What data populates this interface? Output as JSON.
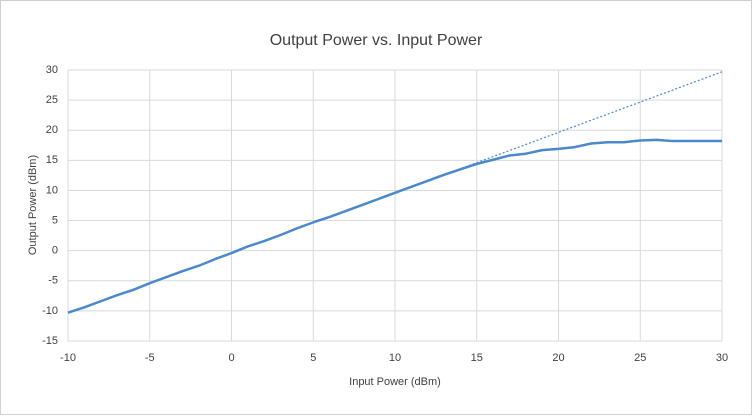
{
  "chart_data": {
    "type": "line",
    "title": "Output Power vs. Input Power",
    "x_label": "Input Power (dBm)",
    "y_label": "Output Power (dBm)",
    "x": [
      -10,
      -9,
      -8,
      -7,
      -6,
      -5,
      -4,
      -3,
      -2,
      -1,
      0,
      1,
      2,
      3,
      4,
      5,
      6,
      7,
      8,
      9,
      10,
      11,
      12,
      13,
      14,
      15,
      16,
      17,
      18,
      19,
      20,
      21,
      22,
      23,
      24,
      25,
      26,
      27,
      28,
      29,
      30
    ],
    "series": [
      {
        "color": "#4a89cc",
        "style": "solid",
        "values": [
          -10.3,
          -9.4,
          -8.4,
          -7.4,
          -6.5,
          -5.4,
          -4.4,
          -3.4,
          -2.5,
          -1.4,
          -0.4,
          0.7,
          1.6,
          2.6,
          3.7,
          4.7,
          5.6,
          6.6,
          7.6,
          8.6,
          9.6,
          10.6,
          11.6,
          12.6,
          13.5,
          14.4,
          15.1,
          15.8,
          16.1,
          16.7,
          16.9,
          17.2,
          17.8,
          18.0,
          18.0,
          18.3,
          18.4,
          18.2,
          18.2,
          18.2,
          18.2
        ]
      },
      {
        "color": "#4a89cc",
        "style": "dotted",
        "x": [
          12,
          30
        ],
        "values": [
          11.6,
          29.7
        ]
      }
    ],
    "xlim": [
      -10,
      30
    ],
    "xticks": [
      -10,
      -5,
      0,
      5,
      10,
      15,
      20,
      25,
      30
    ],
    "ylim": [
      -15,
      30
    ],
    "yticks": [
      -15,
      -10,
      -5,
      0,
      5,
      10,
      15,
      20,
      25,
      30
    ],
    "grid": true
  }
}
